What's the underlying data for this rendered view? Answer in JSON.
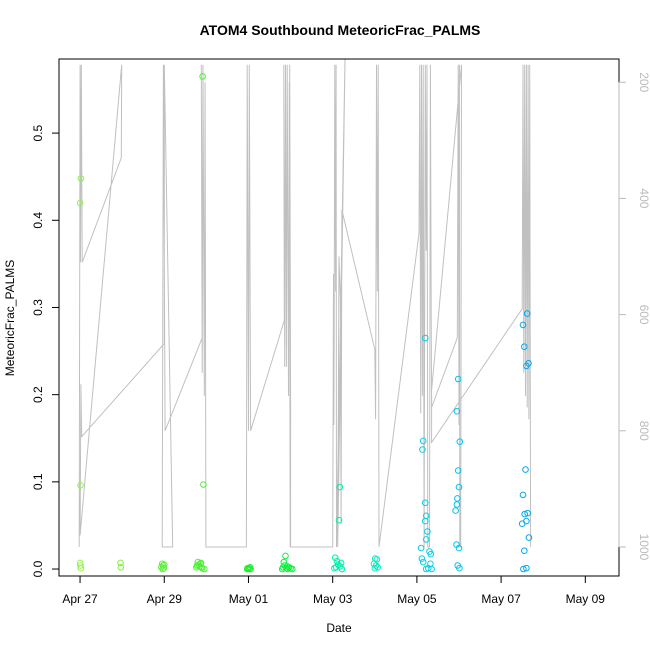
{
  "chart_data": {
    "type": "scatter",
    "title": "ATOM4 Southbound MeteoricFrac_PALMS",
    "xlabel": "Date",
    "ylabel": "MeteoricFrac_PALMS",
    "x_ticks": [
      "Apr 27",
      "Apr 29",
      "May 01",
      "May 03",
      "May 05",
      "May 07",
      "May 09"
    ],
    "y_ticks": [
      "0.0",
      "0.1",
      "0.2",
      "0.3",
      "0.4",
      "0.5"
    ],
    "y2_ticks": [
      "200",
      "400",
      "600",
      "800",
      "1000"
    ],
    "xlim_days": [
      -0.5,
      12.8
    ],
    "ylim": [
      -0.008,
      0.585
    ],
    "y2lim_reversed": [
      1050,
      160
    ],
    "colors": {
      "trace": "#c0c0c0",
      "right_axis": "#bbbbbb"
    },
    "points": [
      {
        "x": 0.02,
        "y": 0.448,
        "color": "#8ef540"
      },
      {
        "x": 0.0,
        "y": 0.42,
        "color": "#8ef540"
      },
      {
        "x": 0.01,
        "y": 0.096,
        "color": "#8ef540"
      },
      {
        "x": 0.0,
        "y": 0.007,
        "color": "#8ef540"
      },
      {
        "x": 0.01,
        "y": 0.004,
        "color": "#8ef540"
      },
      {
        "x": 0.02,
        "y": 0.001,
        "color": "#8ef540"
      },
      {
        "x": 0.96,
        "y": 0.007,
        "color": "#7cf03e"
      },
      {
        "x": 0.97,
        "y": 0.002,
        "color": "#7cf03e"
      },
      {
        "x": 1.95,
        "y": 0.006,
        "color": "#5df03a"
      },
      {
        "x": 1.97,
        "y": 0.004,
        "color": "#5df03a"
      },
      {
        "x": 1.93,
        "y": 0.002,
        "color": "#5df03a"
      },
      {
        "x": 1.99,
        "y": 0.001,
        "color": "#5df03a"
      },
      {
        "x": 2.0,
        "y": 0.005,
        "color": "#5df03a"
      },
      {
        "x": 1.96,
        "y": 0.0,
        "color": "#5df03a"
      },
      {
        "x": 2.91,
        "y": 0.565,
        "color": "#4ef036"
      },
      {
        "x": 2.93,
        "y": 0.097,
        "color": "#4ef036"
      },
      {
        "x": 2.8,
        "y": 0.008,
        "color": "#4ef036"
      },
      {
        "x": 2.82,
        "y": 0.005,
        "color": "#4ef036"
      },
      {
        "x": 2.84,
        "y": 0.003,
        "color": "#4ef036"
      },
      {
        "x": 2.86,
        "y": 0.006,
        "color": "#4ef036"
      },
      {
        "x": 2.88,
        "y": 0.002,
        "color": "#4ef036"
      },
      {
        "x": 2.78,
        "y": 0.004,
        "color": "#4ef036"
      },
      {
        "x": 2.9,
        "y": 0.001,
        "color": "#4ef036"
      },
      {
        "x": 2.95,
        "y": 0.0,
        "color": "#4ef036"
      },
      {
        "x": 2.76,
        "y": 0.002,
        "color": "#4ef036"
      },
      {
        "x": 2.87,
        "y": 0.007,
        "color": "#4ef036"
      },
      {
        "x": 3.98,
        "y": 0.001,
        "color": "#22ee30"
      },
      {
        "x": 4.0,
        "y": 0.0,
        "color": "#22ee30"
      },
      {
        "x": 4.02,
        "y": 0.001,
        "color": "#22ee30"
      },
      {
        "x": 4.05,
        "y": 0.0,
        "color": "#22ee30"
      },
      {
        "x": 4.04,
        "y": 0.002,
        "color": "#22ee30"
      },
      {
        "x": 3.97,
        "y": 0.0,
        "color": "#22ee30"
      },
      {
        "x": 4.84,
        "y": 0.008,
        "color": "#10ee40"
      },
      {
        "x": 4.88,
        "y": 0.015,
        "color": "#10ee40"
      },
      {
        "x": 4.82,
        "y": 0.002,
        "color": "#10ee40"
      },
      {
        "x": 4.86,
        "y": 0.004,
        "color": "#10ee40"
      },
      {
        "x": 4.9,
        "y": 0.001,
        "color": "#10ee40"
      },
      {
        "x": 4.93,
        "y": 0.0,
        "color": "#10ee40"
      },
      {
        "x": 4.96,
        "y": 0.002,
        "color": "#10ee40"
      },
      {
        "x": 5.0,
        "y": 0.001,
        "color": "#10ee40"
      },
      {
        "x": 5.04,
        "y": 0.0,
        "color": "#10ee40"
      },
      {
        "x": 4.8,
        "y": 0.0,
        "color": "#10ee40"
      },
      {
        "x": 4.92,
        "y": 0.003,
        "color": "#10ee40"
      },
      {
        "x": 6.17,
        "y": 0.094,
        "color": "#00eeaa"
      },
      {
        "x": 6.15,
        "y": 0.056,
        "color": "#00eeaa"
      },
      {
        "x": 6.06,
        "y": 0.013,
        "color": "#00eeaa"
      },
      {
        "x": 6.1,
        "y": 0.009,
        "color": "#00eeaa"
      },
      {
        "x": 6.13,
        "y": 0.005,
        "color": "#00eeaa"
      },
      {
        "x": 6.18,
        "y": 0.003,
        "color": "#00eeaa"
      },
      {
        "x": 6.08,
        "y": 0.002,
        "color": "#00eeaa"
      },
      {
        "x": 6.2,
        "y": 0.007,
        "color": "#00eeaa"
      },
      {
        "x": 6.04,
        "y": 0.001,
        "color": "#00eeaa"
      },
      {
        "x": 6.22,
        "y": 0.0,
        "color": "#00eeaa"
      },
      {
        "x": 7.01,
        "y": 0.012,
        "color": "#00eec0"
      },
      {
        "x": 7.05,
        "y": 0.011,
        "color": "#00eec0"
      },
      {
        "x": 6.98,
        "y": 0.006,
        "color": "#00eec0"
      },
      {
        "x": 7.03,
        "y": 0.004,
        "color": "#00eec0"
      },
      {
        "x": 7.07,
        "y": 0.002,
        "color": "#00eec0"
      },
      {
        "x": 7.0,
        "y": 0.001,
        "color": "#00eec0"
      },
      {
        "x": 8.2,
        "y": 0.265,
        "color": "#00d0e8"
      },
      {
        "x": 8.15,
        "y": 0.147,
        "color": "#00d0e8"
      },
      {
        "x": 8.13,
        "y": 0.137,
        "color": "#00d0e8"
      },
      {
        "x": 8.2,
        "y": 0.076,
        "color": "#00d0e8"
      },
      {
        "x": 8.22,
        "y": 0.061,
        "color": "#00d0e8"
      },
      {
        "x": 8.2,
        "y": 0.055,
        "color": "#00d0e8"
      },
      {
        "x": 8.25,
        "y": 0.043,
        "color": "#00d0e8"
      },
      {
        "x": 8.22,
        "y": 0.034,
        "color": "#00d0e8"
      },
      {
        "x": 8.1,
        "y": 0.024,
        "color": "#00d0e8"
      },
      {
        "x": 8.3,
        "y": 0.02,
        "color": "#00d0e8"
      },
      {
        "x": 8.33,
        "y": 0.017,
        "color": "#00d0e8"
      },
      {
        "x": 8.12,
        "y": 0.012,
        "color": "#00d0e8"
      },
      {
        "x": 8.15,
        "y": 0.008,
        "color": "#00d0e8"
      },
      {
        "x": 8.32,
        "y": 0.006,
        "color": "#00d0e8"
      },
      {
        "x": 8.27,
        "y": 0.001,
        "color": "#00d0e8"
      },
      {
        "x": 8.35,
        "y": 0.0,
        "color": "#00d0e8"
      },
      {
        "x": 8.22,
        "y": 0.0,
        "color": "#00d0e8"
      },
      {
        "x": 8.98,
        "y": 0.218,
        "color": "#00c4f0"
      },
      {
        "x": 8.95,
        "y": 0.181,
        "color": "#00c4f0"
      },
      {
        "x": 9.02,
        "y": 0.146,
        "color": "#00c4f0"
      },
      {
        "x": 8.98,
        "y": 0.113,
        "color": "#00c4f0"
      },
      {
        "x": 9.0,
        "y": 0.094,
        "color": "#00c4f0"
      },
      {
        "x": 8.96,
        "y": 0.081,
        "color": "#00c4f0"
      },
      {
        "x": 8.95,
        "y": 0.074,
        "color": "#00c4f0"
      },
      {
        "x": 8.92,
        "y": 0.067,
        "color": "#00c4f0"
      },
      {
        "x": 8.94,
        "y": 0.028,
        "color": "#00c4f0"
      },
      {
        "x": 9.0,
        "y": 0.024,
        "color": "#00c4f0"
      },
      {
        "x": 8.97,
        "y": 0.004,
        "color": "#00c4f0"
      },
      {
        "x": 9.01,
        "y": 0.001,
        "color": "#00c4f0"
      },
      {
        "x": 10.52,
        "y": 0.28,
        "color": "#00a8f0"
      },
      {
        "x": 10.55,
        "y": 0.255,
        "color": "#00a8f0"
      },
      {
        "x": 10.62,
        "y": 0.293,
        "color": "#00a8f0"
      },
      {
        "x": 10.6,
        "y": 0.233,
        "color": "#00a8f0"
      },
      {
        "x": 10.65,
        "y": 0.236,
        "color": "#00a8f0"
      },
      {
        "x": 10.58,
        "y": 0.114,
        "color": "#00a8f0"
      },
      {
        "x": 10.52,
        "y": 0.085,
        "color": "#00a8f0"
      },
      {
        "x": 10.56,
        "y": 0.063,
        "color": "#00a8f0"
      },
      {
        "x": 10.63,
        "y": 0.064,
        "color": "#00a8f0"
      },
      {
        "x": 10.6,
        "y": 0.055,
        "color": "#00a8f0"
      },
      {
        "x": 10.5,
        "y": 0.052,
        "color": "#00a8f0"
      },
      {
        "x": 10.66,
        "y": 0.036,
        "color": "#00a8f0"
      },
      {
        "x": 10.55,
        "y": 0.021,
        "color": "#00a8f0"
      },
      {
        "x": 10.53,
        "y": 0.0,
        "color": "#00a8f0"
      },
      {
        "x": 10.6,
        "y": 0.001,
        "color": "#00a8f0"
      }
    ],
    "pressure_trace": [
      [
        -0.02,
        1000
      ],
      [
        0.0,
        170
      ],
      [
        0.01,
        510
      ],
      [
        0.03,
        170
      ],
      [
        0.05,
        510
      ],
      [
        0.98,
        330
      ],
      [
        0.99,
        170
      ],
      [
        0.0,
        980
      ],
      [
        0.02,
        720
      ],
      [
        0.04,
        810
      ],
      [
        2.0,
        650
      ],
      [
        2.0,
        170
      ],
      [
        2.2,
        1000
      ],
      [
        1.95,
        1000
      ],
      [
        1.98,
        170
      ],
      [
        2.02,
        800
      ],
      [
        2.9,
        640
      ],
      [
        2.88,
        170
      ],
      [
        2.9,
        700
      ],
      [
        2.92,
        170
      ],
      [
        2.95,
        740
      ],
      [
        2.97,
        200
      ],
      [
        2.99,
        1000
      ],
      [
        3.95,
        1000
      ],
      [
        3.97,
        170
      ],
      [
        4.0,
        800
      ],
      [
        4.02,
        170
      ],
      [
        4.05,
        800
      ],
      [
        4.85,
        610
      ],
      [
        4.84,
        170
      ],
      [
        4.86,
        690
      ],
      [
        4.88,
        170
      ],
      [
        4.9,
        690
      ],
      [
        4.92,
        170
      ],
      [
        4.95,
        740
      ],
      [
        4.97,
        200
      ],
      [
        4.99,
        1000
      ],
      [
        4.98,
        170
      ],
      [
        5.0,
        760
      ],
      [
        5.0,
        1000
      ],
      [
        6.0,
        1000
      ],
      [
        6.02,
        530
      ],
      [
        6.03,
        790
      ],
      [
        6.05,
        170
      ],
      [
        6.07,
        560
      ],
      [
        6.08,
        170
      ],
      [
        6.09,
        1000
      ],
      [
        6.3,
        130
      ],
      [
        6.12,
        1000
      ],
      [
        6.15,
        500
      ],
      [
        6.18,
        570
      ],
      [
        6.2,
        960
      ],
      [
        6.22,
        420
      ],
      [
        7.0,
        660
      ],
      [
        7.02,
        780
      ],
      [
        7.04,
        170
      ],
      [
        7.06,
        560
      ],
      [
        7.08,
        170
      ],
      [
        7.1,
        1000
      ],
      [
        8.05,
        460
      ],
      [
        8.07,
        170
      ],
      [
        8.09,
        770
      ],
      [
        8.11,
        170
      ],
      [
        8.13,
        740
      ],
      [
        8.15,
        170
      ],
      [
        8.17,
        1000
      ],
      [
        8.2,
        170
      ],
      [
        8.22,
        490
      ],
      [
        8.24,
        170
      ],
      [
        8.26,
        1000
      ],
      [
        8.3,
        1000
      ],
      [
        8.32,
        170
      ],
      [
        8.34,
        600
      ],
      [
        8.35,
        760
      ],
      [
        8.96,
        640
      ],
      [
        8.98,
        170
      ],
      [
        9.0,
        790
      ],
      [
        9.01,
        170
      ],
      [
        9.02,
        1000
      ],
      [
        9.04,
        1000
      ],
      [
        9.06,
        170
      ],
      [
        8.35,
        730
      ],
      [
        8.35,
        820
      ],
      [
        10.5,
        590
      ],
      [
        10.52,
        170
      ],
      [
        10.54,
        700
      ],
      [
        10.56,
        170
      ],
      [
        10.58,
        740
      ],
      [
        10.6,
        170
      ],
      [
        10.62,
        760
      ],
      [
        10.64,
        170
      ],
      [
        10.66,
        780
      ],
      [
        10.68,
        170
      ],
      [
        10.7,
        1000
      ]
    ]
  }
}
